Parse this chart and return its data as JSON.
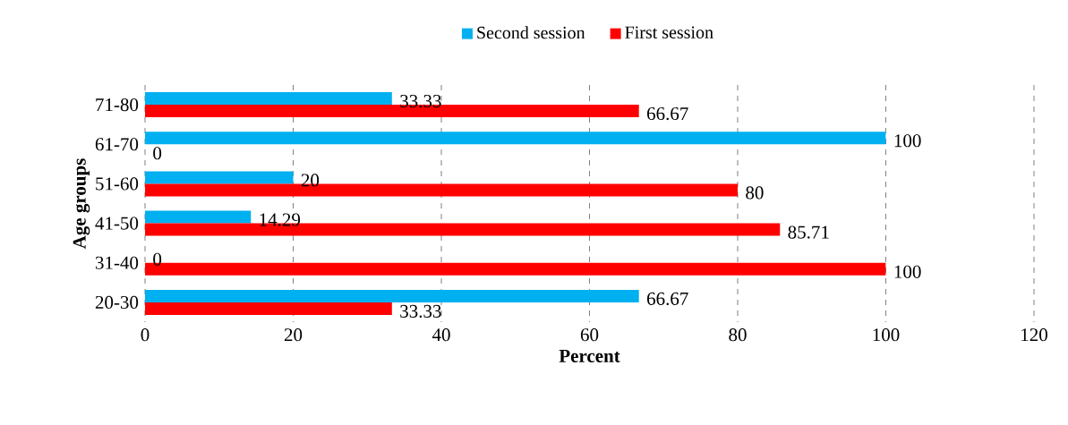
{
  "chart_data": {
    "type": "bar",
    "orientation": "horizontal",
    "xlabel": "Percent",
    "ylabel": "Age groups",
    "categories": [
      "71-80",
      "61-70",
      "51-60",
      "41-50",
      "31-40",
      "20-30"
    ],
    "series": [
      {
        "name": "Second session",
        "color": "#00b0f0",
        "values": [
          33.33,
          100,
          20,
          14.29,
          0,
          66.67
        ]
      },
      {
        "name": "First session",
        "color": "#ff0000",
        "values": [
          66.67,
          0,
          80,
          85.71,
          100,
          33.33
        ]
      }
    ],
    "xlim": [
      0,
      120
    ],
    "xticks": [
      0,
      20,
      40,
      60,
      80,
      100,
      120
    ],
    "grid": "x",
    "legend": "top",
    "data_labels": true
  }
}
